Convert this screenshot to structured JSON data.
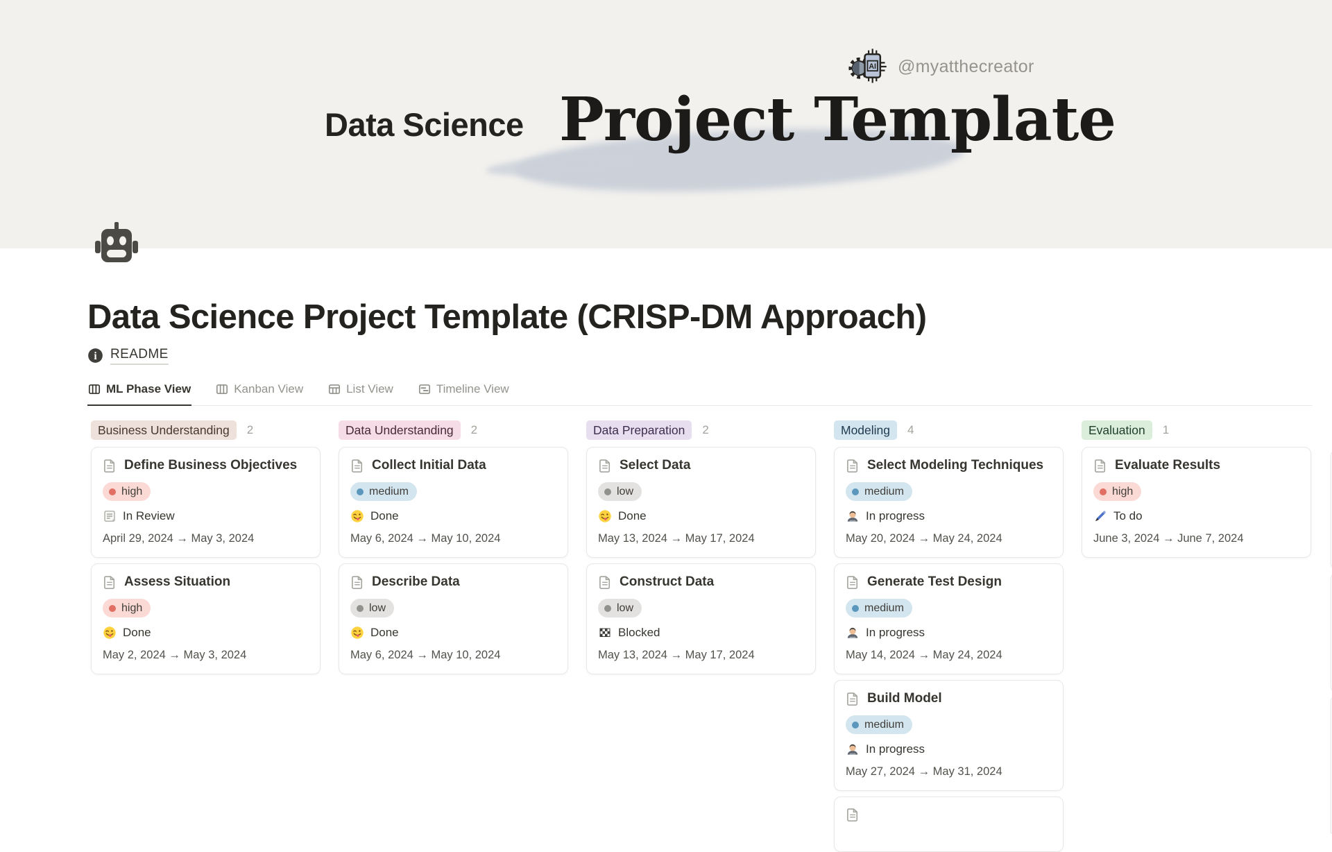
{
  "banner": {
    "handle": "@myatthecreator",
    "logo_icon": "ai-chip-gear",
    "title_left": "Data Science",
    "title_right": "Project Template"
  },
  "page": {
    "icon": "robot",
    "title": "Data Science Project Template (CRISP-DM Approach)",
    "readme_label": "README"
  },
  "tabs": [
    {
      "label": "ML Phase View",
      "icon": "board",
      "active": true
    },
    {
      "label": "Kanban View",
      "icon": "board",
      "active": false
    },
    {
      "label": "List View",
      "icon": "table",
      "active": false
    },
    {
      "label": "Timeline View",
      "icon": "timeline",
      "active": false
    }
  ],
  "priorities": {
    "high": {
      "bg": "#fbdad5",
      "dot": "#e16f64"
    },
    "medium": {
      "bg": "#d3e5ef",
      "dot": "#5b97bd"
    },
    "low": {
      "bg": "#e3e2e0",
      "dot": "#91918e"
    }
  },
  "board": {
    "columns": [
      {
        "name": "Business Understanding",
        "count": "2",
        "pill_bg": "#eee0da",
        "pill_fg": "#47392e",
        "cards": [
          {
            "title": "Define Business Objectives",
            "priority": "high",
            "status": "In Review",
            "status_icon": "notepad",
            "dates": "April 29, 2024 → May 3, 2024"
          },
          {
            "title": "Assess Situation",
            "priority": "high",
            "status": "Done",
            "status_icon": "tongue-face",
            "dates": "May 2, 2024 → May 3, 2024"
          }
        ]
      },
      {
        "name": "Data Understanding",
        "count": "2",
        "pill_bg": "#f5dce6",
        "pill_fg": "#4a2a38",
        "cards": [
          {
            "title": "Collect Initial Data",
            "priority": "medium",
            "status": "Done",
            "status_icon": "tongue-face",
            "dates": "May 6, 2024 → May 10, 2024"
          },
          {
            "title": "Describe Data",
            "priority": "low",
            "status": "Done",
            "status_icon": "tongue-face",
            "dates": "May 6, 2024 → May 10, 2024"
          }
        ]
      },
      {
        "name": "Data Preparation",
        "count": "2",
        "pill_bg": "#e7def0",
        "pill_fg": "#3b2f4d",
        "cards": [
          {
            "title": "Select Data",
            "priority": "low",
            "status": "Done",
            "status_icon": "tongue-face",
            "dates": "May 13, 2024 → May 17, 2024"
          },
          {
            "title": "Construct Data",
            "priority": "low",
            "status": "Blocked",
            "status_icon": "checkered-flag",
            "dates": "May 13, 2024 → May 17, 2024"
          }
        ]
      },
      {
        "name": "Modeling",
        "count": "4",
        "pill_bg": "#d3e5ef",
        "pill_fg": "#1f3a4d",
        "cards": [
          {
            "title": "Select Modeling Techniques",
            "priority": "medium",
            "status": "In progress",
            "status_icon": "technologist",
            "dates": "May 20, 2024 → May 24, 2024"
          },
          {
            "title": "Generate Test Design",
            "priority": "medium",
            "status": "In progress",
            "status_icon": "technologist",
            "dates": "May 14, 2024 → May 24, 2024"
          },
          {
            "title": "Build Model",
            "priority": "medium",
            "status": "In progress",
            "status_icon": "technologist",
            "dates": "May 27, 2024 → May 31, 2024"
          },
          {
            "partial": true
          }
        ]
      },
      {
        "name": "Evaluation",
        "count": "1",
        "pill_bg": "#dbeddb",
        "pill_fg": "#1f3d2b",
        "cards": [
          {
            "title": "Evaluate Results",
            "priority": "high",
            "status": "To do",
            "status_icon": "pen",
            "dates": "June 3, 2024 → June 7, 2024"
          }
        ]
      }
    ]
  }
}
